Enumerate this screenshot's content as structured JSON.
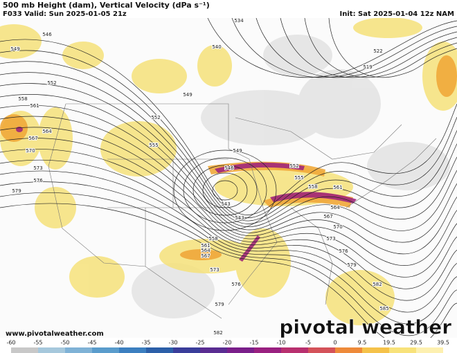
{
  "header": {
    "title": "500 mb Height (dam), Vertical Velocity (dPa s⁻¹)",
    "valid": "F033 Valid: Sun 2025-01-05 21z",
    "init": "Init: Sat 2025-01-04 12z NAM"
  },
  "map": {
    "contour_labels": [
      534,
      540,
      546,
      549,
      552,
      558,
      561,
      564,
      567,
      570,
      573,
      576,
      579,
      549,
      552,
      555,
      522,
      519,
      549,
      546,
      552,
      555,
      558,
      561,
      564,
      567,
      570,
      573,
      576,
      579,
      582,
      585,
      543,
      543,
      558,
      561,
      564,
      567,
      573,
      576,
      579,
      582
    ]
  },
  "colorbar": {
    "ticks": [
      -60,
      -55,
      -50,
      -45,
      -40,
      -35,
      -30,
      -25,
      -20,
      -15,
      -10,
      -5,
      0,
      9.5,
      19.5,
      29.5,
      39.5
    ]
  },
  "footer": {
    "website": "www.pivotalweather.com",
    "logo": "pivotal weather"
  }
}
